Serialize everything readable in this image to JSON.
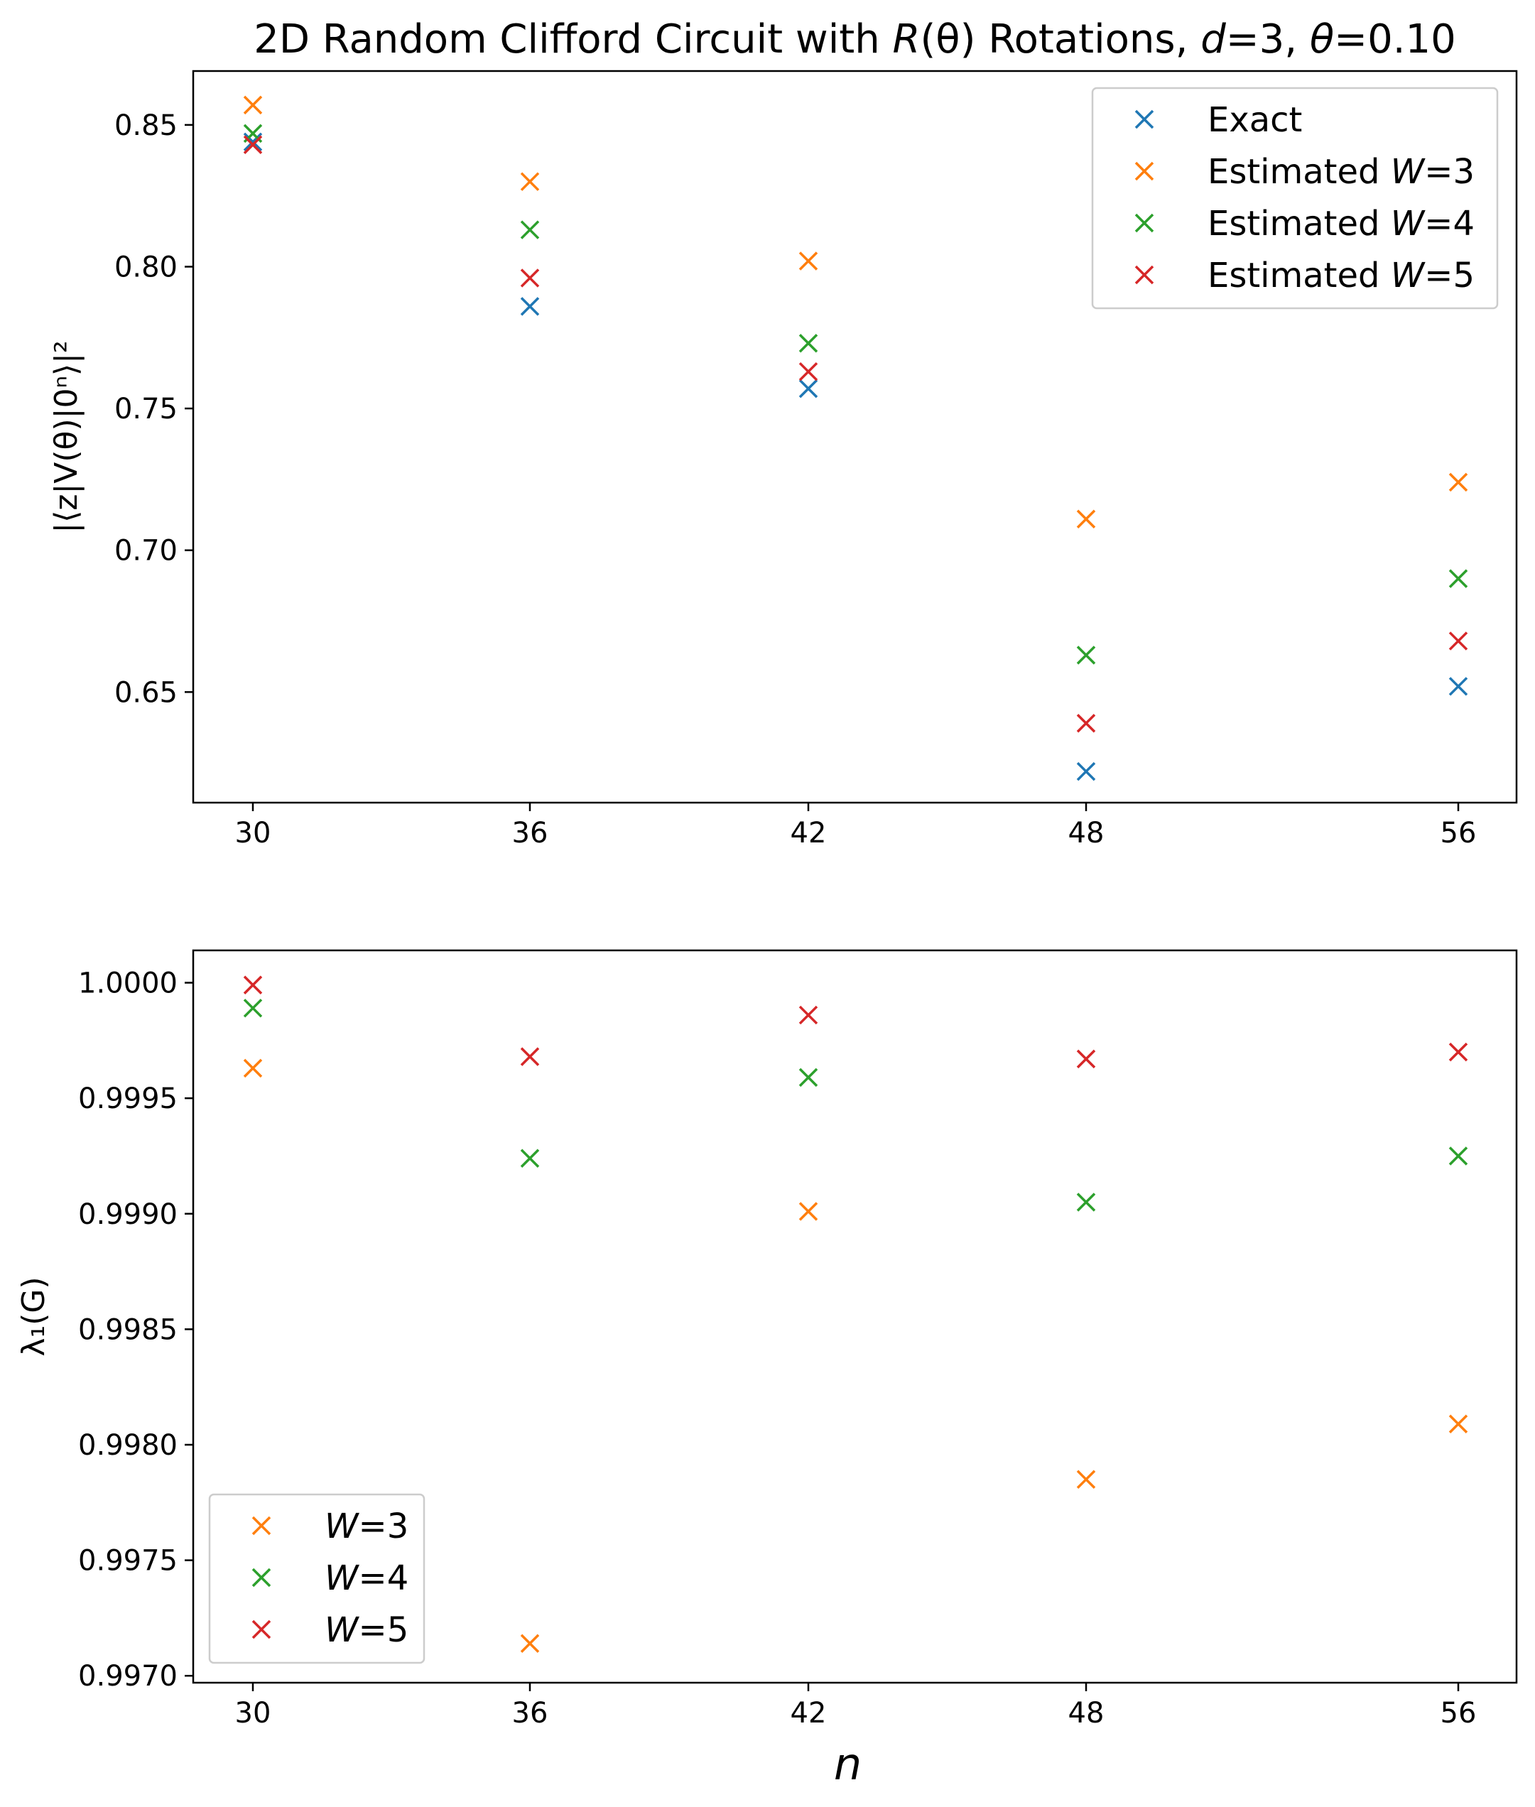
{
  "chart_data": [
    {
      "type": "scatter",
      "title": "2D Random Clifford Circuit with R(θ) Rotations, d=3, θ=0.10",
      "title_parts": [
        "2D Random Clifford Circuit with ",
        "R",
        "(θ) Rotations, ",
        "d",
        "=3, ",
        "θ",
        "=0.10"
      ],
      "xlabel": "",
      "ylabel": "|⟨z|V(θ)|0ⁿ⟩|²",
      "categories": [
        30,
        36,
        42,
        48,
        56
      ],
      "x_tick_labels": [
        "30",
        "36",
        "42",
        "48",
        "56"
      ],
      "ylim": [
        0.611,
        0.869
      ],
      "y_ticks": [
        0.65,
        0.7,
        0.75,
        0.8,
        0.85
      ],
      "y_tick_labels": [
        "0.65",
        "0.70",
        "0.75",
        "0.80",
        "0.85"
      ],
      "legend_position": "upper right",
      "series": [
        {
          "name": "Exact",
          "legend_prefix": "Exact",
          "legend_var": "",
          "legend_suffix": "",
          "color": "#1f77b4",
          "values": [
            0.844,
            0.786,
            0.757,
            0.622,
            0.652
          ]
        },
        {
          "name": "Estimated W=3",
          "legend_prefix": "Estimated ",
          "legend_var": "W",
          "legend_suffix": "=3",
          "color": "#ff7f0e",
          "values": [
            0.857,
            0.83,
            0.802,
            0.711,
            0.724
          ]
        },
        {
          "name": "Estimated W=4",
          "legend_prefix": "Estimated ",
          "legend_var": "W",
          "legend_suffix": "=4",
          "color": "#2ca02c",
          "values": [
            0.847,
            0.813,
            0.773,
            0.663,
            0.69
          ]
        },
        {
          "name": "Estimated W=5",
          "legend_prefix": "Estimated ",
          "legend_var": "W",
          "legend_suffix": "=5",
          "color": "#d62728",
          "values": [
            0.843,
            0.796,
            0.763,
            0.639,
            0.668
          ]
        }
      ]
    },
    {
      "type": "scatter",
      "title": "",
      "xlabel": "n",
      "ylabel": "λ₁(G)",
      "categories": [
        30,
        36,
        42,
        48,
        56
      ],
      "x_tick_labels": [
        "30",
        "36",
        "42",
        "48",
        "56"
      ],
      "ylim": [
        0.99697,
        1.00014
      ],
      "y_ticks": [
        0.997,
        0.9975,
        0.998,
        0.9985,
        0.999,
        0.9995,
        1.0
      ],
      "y_tick_labels": [
        "0.9970",
        "0.9975",
        "0.9980",
        "0.9985",
        "0.9990",
        "0.9995",
        "1.0000"
      ],
      "legend_position": "lower left",
      "series": [
        {
          "name": "W=3",
          "legend_prefix": "",
          "legend_var": "W",
          "legend_suffix": "=3",
          "color": "#ff7f0e",
          "values": [
            0.99963,
            0.99714,
            0.99901,
            0.99785,
            0.99809
          ]
        },
        {
          "name": "W=4",
          "legend_prefix": "",
          "legend_var": "W",
          "legend_suffix": "=4",
          "color": "#2ca02c",
          "values": [
            0.99989,
            0.99924,
            0.99959,
            0.99905,
            0.99925
          ]
        },
        {
          "name": "W=5",
          "legend_prefix": "",
          "legend_var": "W",
          "legend_suffix": "=5",
          "color": "#d62728",
          "values": [
            0.99999,
            0.99968,
            0.99986,
            0.99967,
            0.9997
          ]
        }
      ]
    }
  ]
}
